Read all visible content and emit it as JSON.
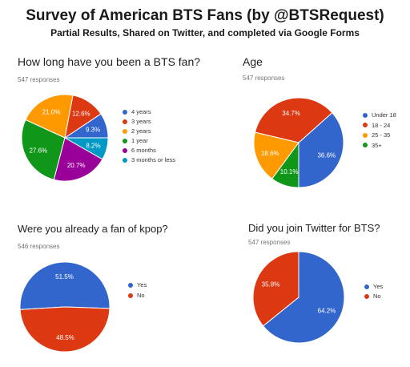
{
  "page": {
    "title": "Survey of American BTS Fans (by @BTSRequest)",
    "subtitle": "Partial Results, Shared on Twitter, and completed via Google Forms"
  },
  "chart_data": [
    {
      "type": "pie",
      "title": "How long have you been a BTS fan?",
      "subtitle": "547 responses",
      "categories": [
        "4 years",
        "3 years",
        "2 years",
        "1 year",
        "6 months",
        "3 months or less"
      ],
      "values": [
        9.3,
        12.6,
        21.0,
        27.6,
        20.7,
        8.2
      ],
      "labels": [
        "9.3%",
        "12.6%",
        "21.0%",
        "27.6%",
        "20.7%",
        "8.2%"
      ],
      "colors": [
        "#3366cc",
        "#dc3912",
        "#ff9900",
        "#109618",
        "#990099",
        "#0099c6"
      ],
      "legend": "right"
    },
    {
      "type": "pie",
      "title": "Age",
      "subtitle": "547 responses",
      "categories": [
        "Under 18",
        "18 - 24",
        "25 - 35",
        "35+"
      ],
      "values": [
        36.6,
        34.7,
        18.6,
        10.1
      ],
      "labels": [
        "36.6%",
        "34.7%",
        "18.6%",
        "10.1%"
      ],
      "colors": [
        "#3366cc",
        "#dc3912",
        "#ff9900",
        "#109618"
      ],
      "legend": "right"
    },
    {
      "type": "pie",
      "title": "Were you already a fan of kpop?",
      "subtitle": "546 responses",
      "categories": [
        "Yes",
        "No"
      ],
      "values": [
        51.5,
        48.5
      ],
      "labels": [
        "51.5%",
        "48.5%"
      ],
      "colors": [
        "#3366cc",
        "#dc3912"
      ],
      "legend": "right"
    },
    {
      "type": "pie",
      "title": "Did you join Twitter for BTS?",
      "subtitle": "547 responses",
      "categories": [
        "Yes",
        "No"
      ],
      "values": [
        64.2,
        35.8
      ],
      "labels": [
        "64.2%",
        "35.8%"
      ],
      "colors": [
        "#3366cc",
        "#dc3912"
      ],
      "legend": "right"
    }
  ]
}
